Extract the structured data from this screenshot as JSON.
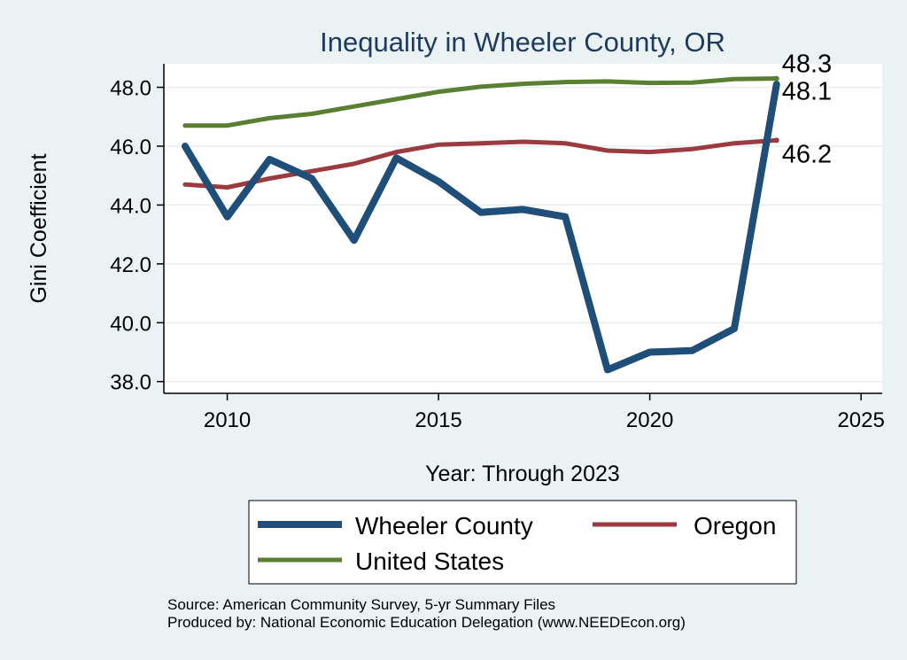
{
  "chart_data": {
    "type": "line",
    "title": "Inequality in Wheeler County, OR",
    "xlabel": "Year: Through 2023",
    "ylabel": "Gini Coefficient",
    "xlim": [
      2008.5,
      2025.5
    ],
    "ylim": [
      37.6,
      48.8
    ],
    "xticks": [
      2010,
      2015,
      2020,
      2025
    ],
    "yticks": [
      38,
      40,
      42,
      44,
      46,
      48
    ],
    "ytick_labels": [
      "38.0",
      "40.0",
      "42.0",
      "44.0",
      "46.0",
      "48.0"
    ],
    "grid": true,
    "x": [
      2009,
      2010,
      2011,
      2012,
      2013,
      2014,
      2015,
      2016,
      2017,
      2018,
      2019,
      2020,
      2021,
      2022,
      2023
    ],
    "series": [
      {
        "name": "Wheeler County",
        "color": "#1f4e79",
        "values": [
          46.0,
          43.6,
          45.55,
          44.9,
          42.8,
          45.6,
          44.8,
          43.75,
          43.85,
          43.6,
          38.4,
          39.0,
          39.05,
          39.8,
          48.1
        ],
        "end_label": "48.1"
      },
      {
        "name": "Oregon",
        "color": "#9b3a3f",
        "values": [
          44.7,
          44.6,
          44.9,
          45.15,
          45.4,
          45.8,
          46.05,
          46.1,
          46.15,
          46.1,
          45.85,
          45.8,
          45.9,
          46.1,
          46.2
        ],
        "end_label": "46.2"
      },
      {
        "name": "United States",
        "color": "#5a7e32",
        "values": [
          46.7,
          46.7,
          46.95,
          47.1,
          47.35,
          47.6,
          47.85,
          48.02,
          48.12,
          48.18,
          48.2,
          48.15,
          48.16,
          48.28,
          48.3
        ],
        "end_label": "48.3"
      }
    ],
    "legend_position": "bottom"
  },
  "source": {
    "line1": "Source: American Community Survey, 5-yr Summary Files",
    "line2": "Produced by: National Economic Education Delegation (www.NEEDEcon.org)"
  }
}
